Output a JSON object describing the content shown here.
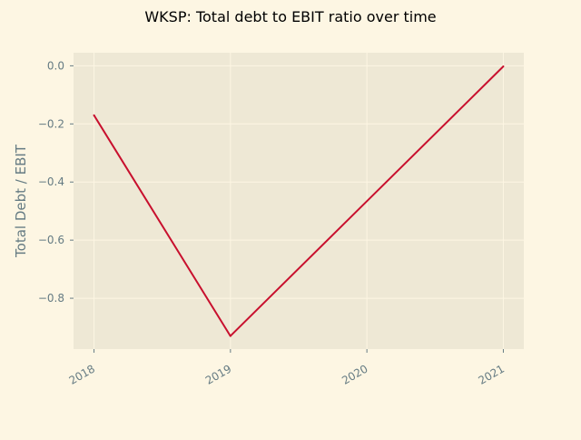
{
  "chart_data": {
    "type": "line",
    "title": "WKSP: Total debt to EBIT ratio over time",
    "xlabel": "",
    "ylabel": "Total Debt / EBIT",
    "x": [
      "2018",
      "2019",
      "2020",
      "2021"
    ],
    "series": [
      {
        "name": "Total Debt / EBIT",
        "x": [
          2018,
          2019,
          2021
        ],
        "values": [
          -0.17,
          -0.93,
          -0.002
        ],
        "color": "#c8102e"
      }
    ],
    "xlim": [
      2017.85,
      2021.15
    ],
    "ylim": [
      -0.975,
      0.045
    ],
    "yticks": [
      0.0,
      -0.2,
      -0.4,
      -0.6,
      -0.8
    ],
    "ytick_labels": [
      "0.0",
      "−0.2",
      "−0.4",
      "−0.6",
      "−0.8"
    ],
    "xticks": [
      2018,
      2019,
      2020,
      2021
    ],
    "xtick_labels": [
      "2018",
      "2019",
      "2020",
      "2021"
    ],
    "grid": true,
    "colors": {
      "figure_bg": "#fdf6e3",
      "axes_bg": "#eee8d5",
      "grid": "#fdf6e3",
      "tick_text": "#657b83",
      "title_text": "#000000"
    }
  }
}
